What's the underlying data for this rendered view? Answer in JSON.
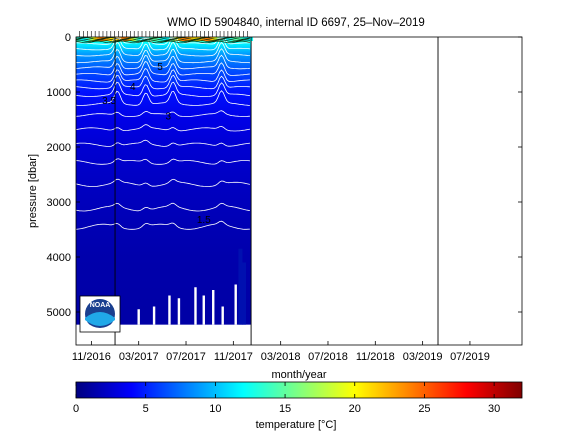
{
  "chart_data": {
    "type": "heatmap",
    "title": "WMO ID 5904840, internal ID 6697, 25–Nov–2019",
    "xlabel": "month/year",
    "ylabel": "pressure [dbar]",
    "x_ticks": [
      "11/2016",
      "03/2017",
      "07/2017",
      "11/2017",
      "03/2018",
      "07/2018",
      "11/2018",
      "03/2019",
      "07/2019"
    ],
    "x_tick_months": [
      0,
      4,
      8,
      12,
      16,
      20,
      24,
      28,
      32
    ],
    "x_range_months": [
      -1.3,
      36.4
    ],
    "data_end_month": 13.5,
    "y_ticks": [
      0,
      1000,
      2000,
      3000,
      4000,
      5000
    ],
    "y_range": [
      0,
      5600
    ],
    "y_reversed": true,
    "vertical_markers_month": [
      2.0,
      13.5,
      29.3
    ],
    "colorbar": {
      "label": "temperature [°C]",
      "range": [
        0,
        32
      ],
      "ticks": [
        0,
        5,
        10,
        15,
        20,
        25,
        30
      ],
      "colormap": "jet"
    },
    "temperature_profile": [
      {
        "pressure": 0,
        "temperature": 20.0
      },
      {
        "pressure": 100,
        "temperature": 12.0
      },
      {
        "pressure": 300,
        "temperature": 9.0
      },
      {
        "pressure": 600,
        "temperature": 6.5
      },
      {
        "pressure": 1000,
        "temperature": 4.5
      },
      {
        "pressure": 1500,
        "temperature": 3.2
      },
      {
        "pressure": 2000,
        "temperature": 2.6
      },
      {
        "pressure": 2500,
        "temperature": 2.2
      },
      {
        "pressure": 3000,
        "temperature": 1.9
      },
      {
        "pressure": 3500,
        "temperature": 1.6
      },
      {
        "pressure": 4000,
        "temperature": 1.4
      },
      {
        "pressure": 5000,
        "temperature": 1.2
      }
    ],
    "contour_labels": [
      {
        "text": "3.5",
        "month": 1.5,
        "pressure": 1220
      },
      {
        "text": "4",
        "month": 3.5,
        "pressure": 960
      },
      {
        "text": "5",
        "month": 5.8,
        "pressure": 600
      },
      {
        "text": "3",
        "month": 6.5,
        "pressure": 1500
      },
      {
        "text": "1.5",
        "month": 9.5,
        "pressure": 3380
      }
    ],
    "logo_text": "NOAA"
  },
  "colors": {
    "axis": "#000000",
    "contour": "#ffffff",
    "background": "#ffffff"
  }
}
